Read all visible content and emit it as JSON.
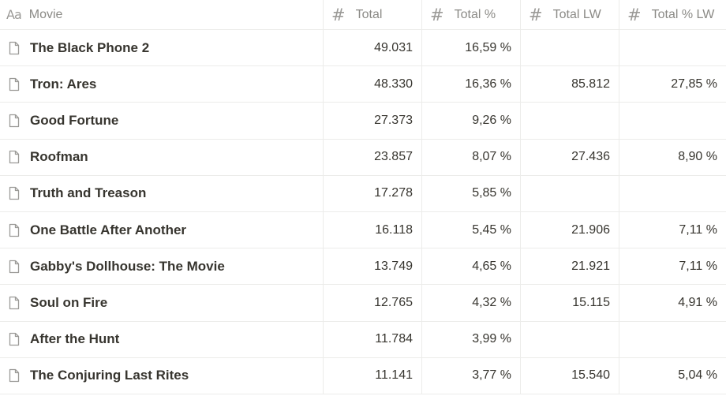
{
  "header": {
    "movie_label": "Movie",
    "movie_icon": "Aa",
    "total_label": "Total",
    "total_pct_label": "Total %",
    "total_lw_label": "Total LW",
    "total_pct_lw_label": "Total % LW",
    "hash_symbol": "#"
  },
  "rows": [
    {
      "movie": "The Black Phone 2",
      "total": "49.031",
      "total_pct": "16,59 %",
      "total_lw": "",
      "total_pct_lw": ""
    },
    {
      "movie": "Tron: Ares",
      "total": "48.330",
      "total_pct": "16,36 %",
      "total_lw": "85.812",
      "total_pct_lw": "27,85 %"
    },
    {
      "movie": "Good Fortune",
      "total": "27.373",
      "total_pct": "9,26 %",
      "total_lw": "",
      "total_pct_lw": ""
    },
    {
      "movie": "Roofman",
      "total": "23.857",
      "total_pct": "8,07 %",
      "total_lw": "27.436",
      "total_pct_lw": "8,90 %"
    },
    {
      "movie": "Truth and Treason",
      "total": "17.278",
      "total_pct": "5,85 %",
      "total_lw": "",
      "total_pct_lw": ""
    },
    {
      "movie": "One Battle After Another",
      "total": "16.118",
      "total_pct": "5,45 %",
      "total_lw": "21.906",
      "total_pct_lw": "7,11 %"
    },
    {
      "movie": "Gabby's Dollhouse: The Movie",
      "total": "13.749",
      "total_pct": "4,65 %",
      "total_lw": "21.921",
      "total_pct_lw": "7,11 %"
    },
    {
      "movie": "Soul on Fire",
      "total": "12.765",
      "total_pct": "4,32 %",
      "total_lw": "15.115",
      "total_pct_lw": "4,91 %"
    },
    {
      "movie": "After the Hunt",
      "total": "11.784",
      "total_pct": "3,99 %",
      "total_lw": "",
      "total_pct_lw": ""
    },
    {
      "movie": "The Conjuring Last Rites",
      "total": "11.141",
      "total_pct": "3,77 %",
      "total_lw": "15.540",
      "total_pct_lw": "5,04 %"
    }
  ],
  "icons": {
    "title_property": "text-property-icon",
    "number_property": "number-property-icon",
    "row_page": "page-icon"
  }
}
